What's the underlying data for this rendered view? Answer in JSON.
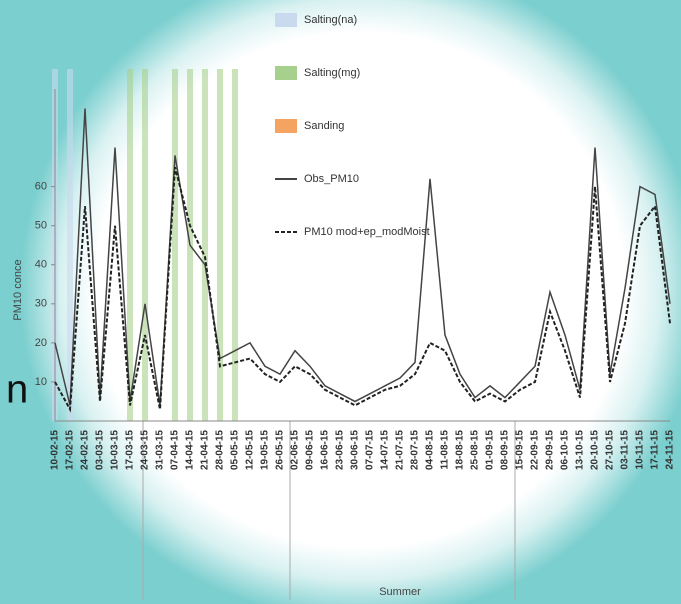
{
  "chart_data": {
    "type": "line",
    "y_label": "PM10 conce",
    "x_label": "Summer",
    "fragment": "n",
    "ylim": [
      0,
      85
    ],
    "yticks": [
      10,
      20,
      30,
      40,
      50,
      60
    ],
    "categories": [
      "10-02-15",
      "17-02-15",
      "24-02-15",
      "03-03-15",
      "10-03-15",
      "17-03-15",
      "24-03-15",
      "31-03-15",
      "07-04-15",
      "14-04-15",
      "21-04-15",
      "28-04-15",
      "05-05-15",
      "12-05-15",
      "19-05-15",
      "26-05-15",
      "02-06-15",
      "09-06-15",
      "16-06-15",
      "23-06-15",
      "30-06-15",
      "07-07-15",
      "14-07-15",
      "21-07-15",
      "28-07-15",
      "04-08-15",
      "11-08-15",
      "18-08-15",
      "25-08-15",
      "01-09-15",
      "08-09-15",
      "15-09-15",
      "22-09-15",
      "29-09-15",
      "06-10-15",
      "13-10-15",
      "20-10-15",
      "27-10-15",
      "03-11-15",
      "10-11-15",
      "17-11-15",
      "24-11-15"
    ],
    "series": [
      {
        "name": "Obs_PM10",
        "color": "#444444",
        "dash": false,
        "values": [
          20,
          4,
          80,
          6,
          70,
          5,
          30,
          4,
          68,
          45,
          40,
          16,
          18,
          20,
          14,
          12,
          18,
          14,
          9,
          7,
          5,
          7,
          9,
          11,
          15,
          62,
          22,
          12,
          6,
          9,
          6,
          10,
          14,
          33,
          22,
          8,
          70,
          12,
          34,
          60,
          58,
          30
        ]
      },
      {
        "name": "PM10 mod+ep_modMoist",
        "color": "#222222",
        "dash": true,
        "values": [
          10,
          3,
          55,
          5,
          50,
          4,
          22,
          3,
          65,
          50,
          42,
          14,
          15,
          16,
          12,
          10,
          14,
          12,
          8,
          6,
          4,
          6,
          8,
          9,
          12,
          20,
          18,
          10,
          5,
          7,
          5,
          8,
          10,
          28,
          18,
          6,
          60,
          10,
          25,
          50,
          55,
          25
        ]
      }
    ],
    "events": [
      {
        "name": "Salting(na)",
        "color": "#c9d9ee",
        "at": [
          0,
          1
        ]
      },
      {
        "name": "Salting(mg)",
        "color": "#a8d08d",
        "at": [
          5,
          6,
          8,
          9,
          10,
          11,
          12
        ]
      },
      {
        "name": "Sanding",
        "color": "#f4a460",
        "at": []
      }
    ]
  }
}
